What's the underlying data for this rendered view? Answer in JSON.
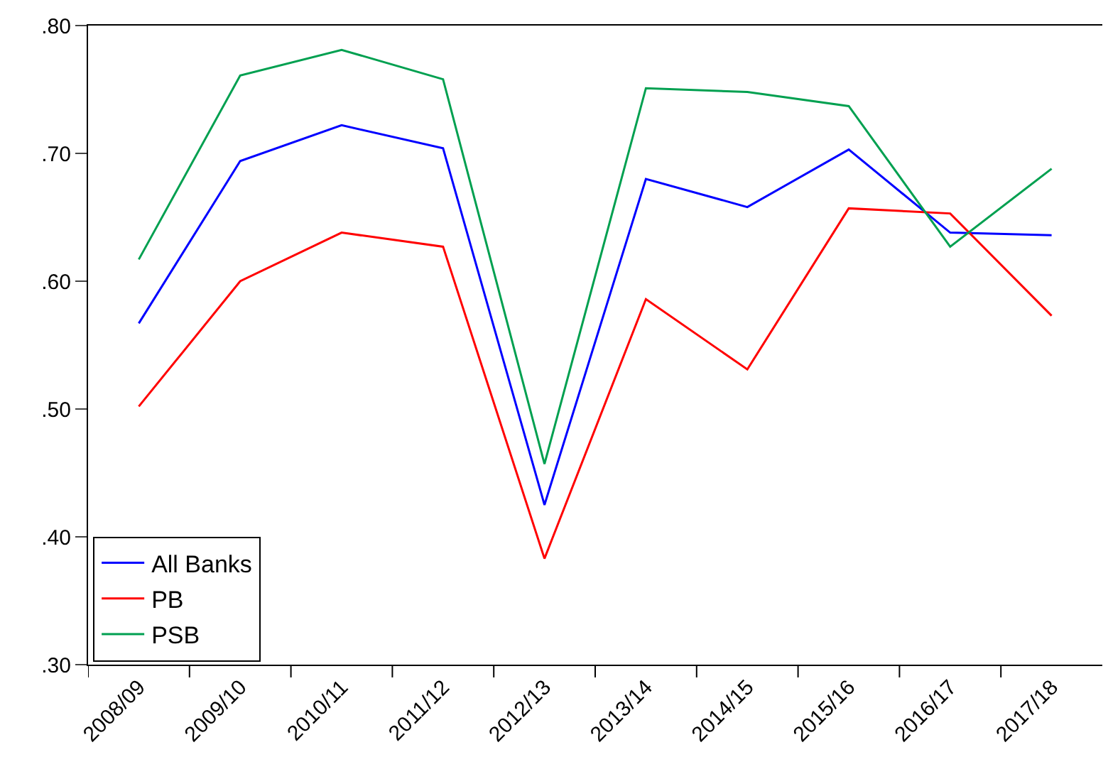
{
  "chart_data": {
    "type": "line",
    "categories": [
      "2008/09",
      "2009/10",
      "2010/11",
      "2011/12",
      "2012/13",
      "2013/14",
      "2014/15",
      "2015/16",
      "2016/17",
      "2017/18"
    ],
    "series": [
      {
        "name": "All Banks",
        "color": "#0000ff",
        "values": [
          0.567,
          0.694,
          0.722,
          0.704,
          0.425,
          0.68,
          0.658,
          0.703,
          0.638,
          0.636
        ]
      },
      {
        "name": "PB",
        "color": "#ff0000",
        "values": [
          0.502,
          0.6,
          0.638,
          0.627,
          0.383,
          0.586,
          0.531,
          0.657,
          0.653,
          0.573
        ]
      },
      {
        "name": "PSB",
        "color": "#00a050",
        "values": [
          0.617,
          0.761,
          0.781,
          0.758,
          0.457,
          0.751,
          0.748,
          0.737,
          0.627,
          0.688
        ]
      }
    ],
    "ylim": [
      0.3,
      0.8
    ],
    "yticks": [
      {
        "value": 0.3,
        "label": ".30"
      },
      {
        "value": 0.4,
        "label": ".40"
      },
      {
        "value": 0.5,
        "label": ".50"
      },
      {
        "value": 0.6,
        "label": ".60"
      },
      {
        "value": 0.7,
        "label": ".70"
      },
      {
        "value": 0.8,
        "label": ".80"
      }
    ],
    "grid": false,
    "legend": "bottom left",
    "marker": "none",
    "line_style": "solid"
  }
}
